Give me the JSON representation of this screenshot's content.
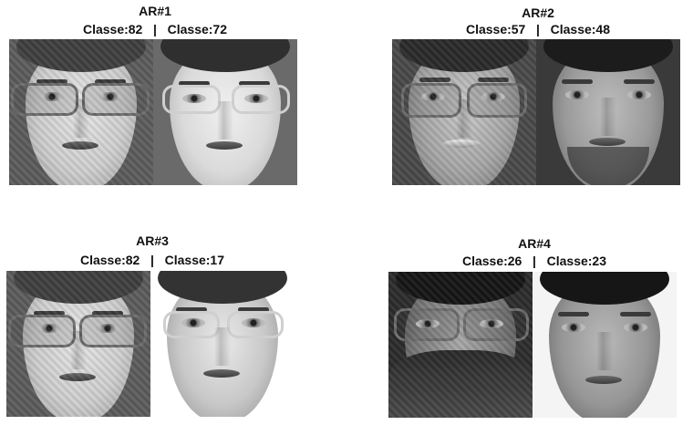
{
  "panels": [
    {
      "title": "AR#1",
      "left_label": "Classe:82",
      "right_label": "Classe:72"
    },
    {
      "title": "AR#2",
      "left_label": "Classe:57",
      "right_label": "Classe:48"
    },
    {
      "title": "AR#3",
      "left_label": "Classe:82",
      "right_label": "Classe:17"
    },
    {
      "title": "AR#4",
      "left_label": "Classe:26",
      "right_label": "Classe:23"
    }
  ],
  "separator": "|"
}
